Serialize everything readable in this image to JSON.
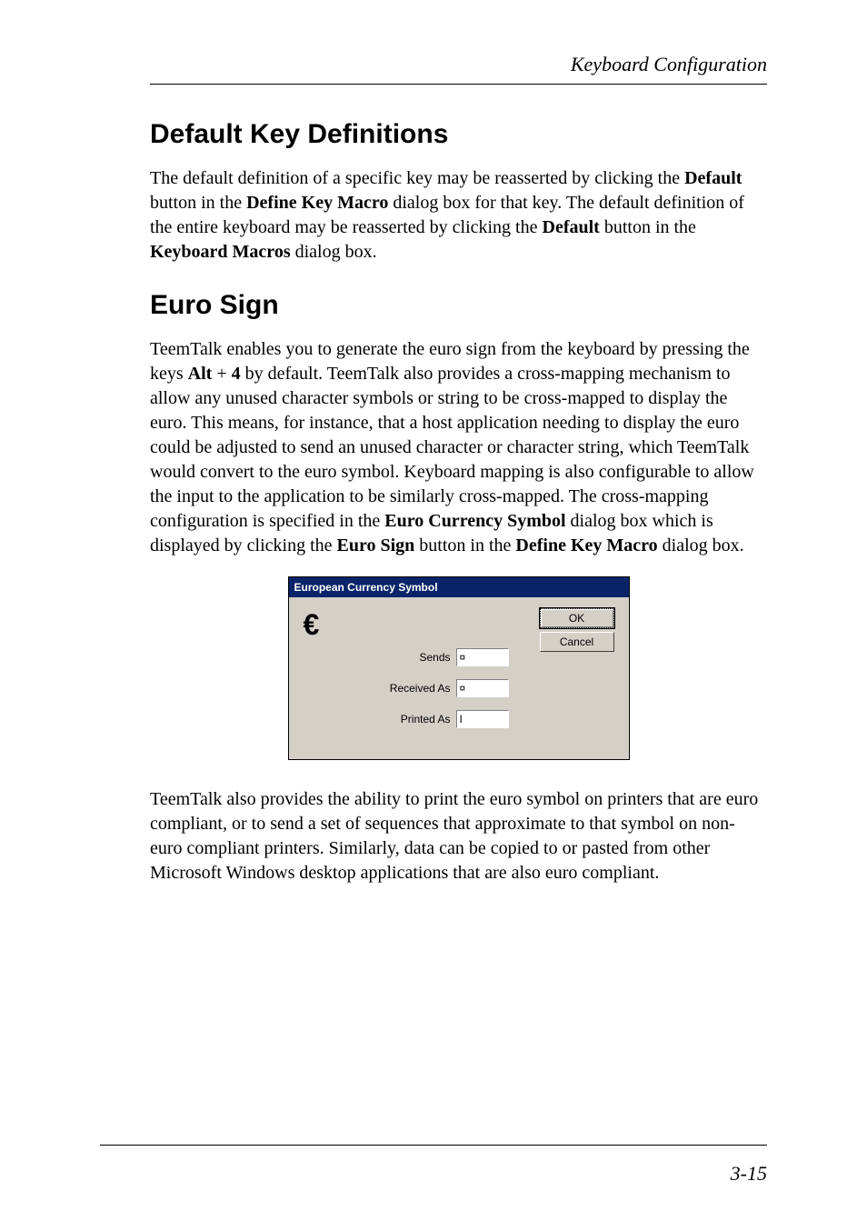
{
  "header": "Keyboard Configuration",
  "footer": "3-15",
  "section1": {
    "title": "Default Key Definitions",
    "para1_pre": "The default definition of a specific key may be reasserted by clicking the ",
    "para1_b1": "Default",
    "para1_mid1": " button in the ",
    "para1_b2": "Define Key Macro",
    "para1_mid2": " dialog box for that key. The default definition of the entire keyboard may be reasserted by clicking the ",
    "para1_b3": "Default",
    "para1_mid3": " button in the ",
    "para1_b4": "Keyboard Macros",
    "para1_end": " dialog box."
  },
  "section2": {
    "title": "Euro Sign",
    "para1_pre": "TeemTalk enables you to generate the euro sign from the keyboard by pressing the keys ",
    "para1_b1": "Alt",
    "para1_mid1": " + ",
    "para1_b2": "4",
    "para1_mid2": " by default. TeemTalk also provides a cross-mapping mechanism to allow any unused character symbols or string to be cross-mapped to display the euro. This means, for instance, that a host application needing to display the euro could be adjusted to send an unused character or character string, which TeemTalk would convert to the euro symbol. Keyboard mapping is also configurable to allow the input to the application to be similarly cross-mapped. The cross-mapping configuration is specified in the ",
    "para1_b3": "Euro Currency Symbol",
    "para1_mid3": " dialog box which is displayed by clicking the ",
    "para1_b4": "Euro Sign",
    "para1_mid4": " button in the ",
    "para1_b5": "Define Key Macro",
    "para1_end": " dialog box.",
    "para2": "TeemTalk also provides the ability to print the euro symbol on printers that are euro compliant, or to send a set of sequences that approximate to that symbol on non-euro compliant printers. Similarly, data can be copied to or pasted from other Microsoft Windows desktop applications that are also euro compliant."
  },
  "dialog": {
    "title": "European Currency Symbol",
    "euro_glyph": "€",
    "sends_label": "Sends",
    "sends_value": "¤",
    "received_label": "Received As",
    "received_value": "¤",
    "printed_label": "Printed As",
    "printed_value": "I",
    "ok_label": "OK",
    "cancel_label": "Cancel"
  }
}
